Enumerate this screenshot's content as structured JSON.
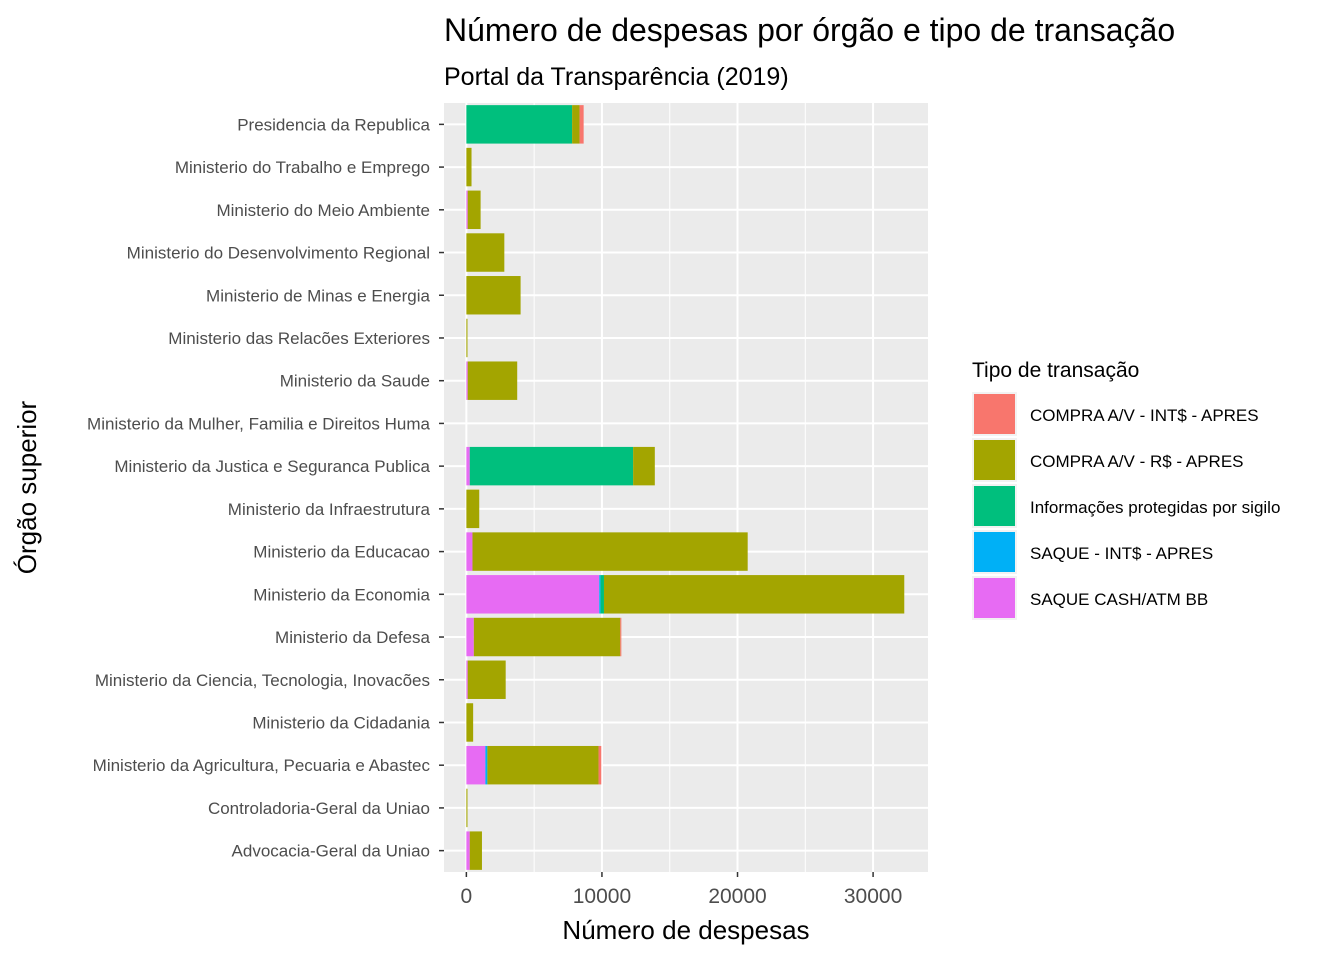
{
  "chart_data": {
    "type": "bar",
    "orientation": "horizontal",
    "stacked": true,
    "title": "Número de despesas por órgão e tipo de transação",
    "subtitle": "Portal da Transparência (2019)",
    "xlabel": "Número de despesas",
    "ylabel": "Órgão superior",
    "xlim": [
      -1650,
      34050
    ],
    "x_ticks": [
      0,
      10000,
      20000,
      30000
    ],
    "x_tick_labels": [
      "0",
      "10000",
      "20000",
      "30000"
    ],
    "grid": true,
    "legend": {
      "title": "Tipo de transação",
      "position": "right"
    },
    "categories": [
      "Advocacia-Geral da Uniao",
      "Controladoria-Geral da Uniao",
      "Ministerio da Agricultura, Pecuaria e Abastec",
      "Ministerio da Cidadania",
      "Ministerio da Ciencia, Tecnologia, Inovacões ",
      "Ministerio da Defesa",
      "Ministerio da Economia",
      "Ministerio da Educacao",
      "Ministerio da Infraestrutura",
      "Ministerio da Justica e Seguranca Publica",
      "Ministerio da Mulher, Familia e Direitos Huma",
      "Ministerio da Saude",
      "Ministerio das Relacões Exteriores",
      "Ministerio de Minas e Energia",
      "Ministerio do Desenvolvimento Regional",
      "Ministerio do Meio Ambiente",
      "Ministerio do Trabalho e Emprego",
      "Presidencia da Republica"
    ],
    "series": [
      {
        "name": "SAQUE CASH/ATM BB",
        "color": "#E76BF3",
        "values": [
          250,
          0,
          1400,
          0,
          100,
          550,
          9800,
          450,
          0,
          250,
          0,
          100,
          0,
          0,
          0,
          100,
          0,
          0
        ]
      },
      {
        "name": "SAQUE - INT$ - APRES",
        "color": "#00B0F6",
        "values": [
          0,
          0,
          150,
          0,
          0,
          0,
          100,
          0,
          0,
          0,
          0,
          0,
          0,
          0,
          0,
          0,
          0,
          0
        ]
      },
      {
        "name": "Informações protegidas por sigilo",
        "color": "#00BF7D",
        "values": [
          0,
          0,
          0,
          0,
          0,
          0,
          250,
          0,
          0,
          12050,
          0,
          0,
          0,
          0,
          0,
          0,
          0,
          7800
        ]
      },
      {
        "name": "COMPRA A/V - R$ - APRES",
        "color": "#A3A500",
        "values": [
          900,
          80,
          8200,
          500,
          2800,
          10800,
          22150,
          20300,
          950,
          1600,
          0,
          3650,
          80,
          4000,
          2800,
          950,
          380,
          550
        ]
      },
      {
        "name": "COMPRA A/V - INT$ - APRES",
        "color": "#F8766D",
        "values": [
          0,
          0,
          200,
          0,
          0,
          80,
          0,
          0,
          0,
          0,
          0,
          0,
          0,
          0,
          0,
          0,
          0,
          300
        ]
      }
    ],
    "legend_order": [
      "COMPRA A/V - INT$ - APRES",
      "COMPRA A/V - R$ - APRES",
      "Informações protegidas por sigilo",
      "SAQUE - INT$ - APRES",
      "SAQUE CASH/ATM BB"
    ]
  }
}
